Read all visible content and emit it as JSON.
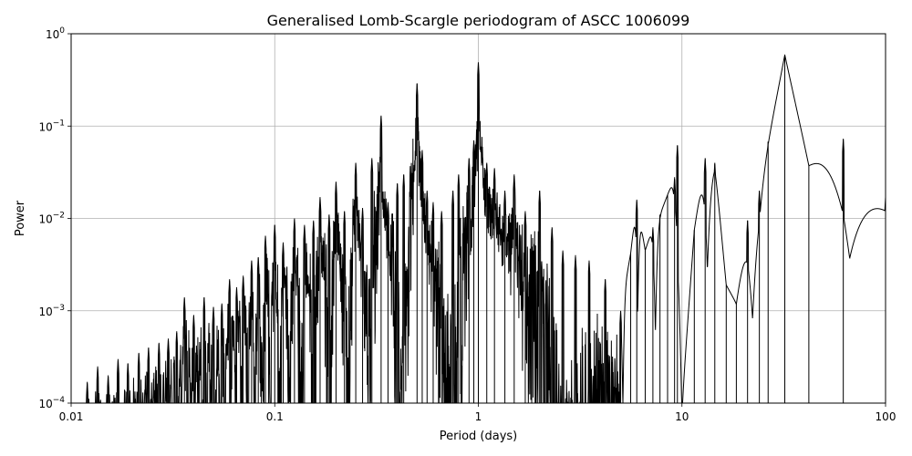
{
  "chart_data": {
    "type": "line",
    "title": "Generalised Lomb-Scargle periodogram of ASCC 1006099",
    "xlabel": "Period (days)",
    "ylabel": "Power",
    "xscale": "log",
    "yscale": "log",
    "xlim": [
      0.01,
      100
    ],
    "ylim": [
      0.0001,
      1
    ],
    "grid": true,
    "x_ticks": [
      {
        "value": 0.01,
        "label": "0.01"
      },
      {
        "value": 0.1,
        "label": "0.1"
      },
      {
        "value": 1,
        "label": "1"
      },
      {
        "value": 10,
        "label": "10"
      },
      {
        "value": 100,
        "label": "100"
      }
    ],
    "y_ticks": [
      {
        "value": 0.0001,
        "base": "10",
        "exp": "−4"
      },
      {
        "value": 0.001,
        "base": "10",
        "exp": "−3"
      },
      {
        "value": 0.01,
        "base": "10",
        "exp": "−2"
      },
      {
        "value": 0.1,
        "base": "10",
        "exp": "−1"
      },
      {
        "value": 1,
        "base": "10",
        "exp": "0"
      }
    ],
    "line_color": "#000000",
    "peaks": [
      {
        "x": 0.012,
        "y": 0.00017
      },
      {
        "x": 0.0135,
        "y": 0.00025
      },
      {
        "x": 0.0152,
        "y": 0.0002
      },
      {
        "x": 0.017,
        "y": 0.0003
      },
      {
        "x": 0.019,
        "y": 0.00027
      },
      {
        "x": 0.0215,
        "y": 0.00035
      },
      {
        "x": 0.024,
        "y": 0.0004
      },
      {
        "x": 0.027,
        "y": 0.00045
      },
      {
        "x": 0.03,
        "y": 0.0005
      },
      {
        "x": 0.033,
        "y": 0.0006
      },
      {
        "x": 0.036,
        "y": 0.0014
      },
      {
        "x": 0.04,
        "y": 0.0009
      },
      {
        "x": 0.045,
        "y": 0.0014
      },
      {
        "x": 0.05,
        "y": 0.0011
      },
      {
        "x": 0.055,
        "y": 0.0012
      },
      {
        "x": 0.06,
        "y": 0.0022
      },
      {
        "x": 0.065,
        "y": 0.0018
      },
      {
        "x": 0.07,
        "y": 0.0024
      },
      {
        "x": 0.077,
        "y": 0.0035
      },
      {
        "x": 0.083,
        "y": 0.0038
      },
      {
        "x": 0.09,
        "y": 0.0065
      },
      {
        "x": 0.1,
        "y": 0.0085
      },
      {
        "x": 0.11,
        "y": 0.0055
      },
      {
        "x": 0.125,
        "y": 0.01
      },
      {
        "x": 0.14,
        "y": 0.0085
      },
      {
        "x": 0.155,
        "y": 0.0095
      },
      {
        "x": 0.167,
        "y": 0.017
      },
      {
        "x": 0.185,
        "y": 0.011
      },
      {
        "x": 0.2,
        "y": 0.025
      },
      {
        "x": 0.22,
        "y": 0.012
      },
      {
        "x": 0.25,
        "y": 0.04
      },
      {
        "x": 0.27,
        "y": 0.013
      },
      {
        "x": 0.3,
        "y": 0.045
      },
      {
        "x": 0.333,
        "y": 0.13
      },
      {
        "x": 0.36,
        "y": 0.015
      },
      {
        "x": 0.4,
        "y": 0.024
      },
      {
        "x": 0.43,
        "y": 0.03
      },
      {
        "x": 0.5,
        "y": 0.29
      },
      {
        "x": 0.53,
        "y": 0.055
      },
      {
        "x": 0.56,
        "y": 0.02
      },
      {
        "x": 0.6,
        "y": 0.015
      },
      {
        "x": 0.66,
        "y": 0.012
      },
      {
        "x": 0.75,
        "y": 0.02
      },
      {
        "x": 0.8,
        "y": 0.03
      },
      {
        "x": 0.9,
        "y": 0.045
      },
      {
        "x": 0.95,
        "y": 0.07
      },
      {
        "x": 1.0,
        "y": 0.49
      },
      {
        "x": 1.1,
        "y": 0.04
      },
      {
        "x": 1.2,
        "y": 0.035
      },
      {
        "x": 1.35,
        "y": 0.02
      },
      {
        "x": 1.5,
        "y": 0.03
      },
      {
        "x": 1.7,
        "y": 0.012
      },
      {
        "x": 2.0,
        "y": 0.02
      },
      {
        "x": 2.3,
        "y": 0.008
      },
      {
        "x": 2.6,
        "y": 0.0045
      },
      {
        "x": 3.0,
        "y": 0.004
      },
      {
        "x": 3.5,
        "y": 0.0035
      },
      {
        "x": 4.2,
        "y": 0.0022
      },
      {
        "x": 5.0,
        "y": 0.001
      },
      {
        "x": 5.6,
        "y": 0.0042
      },
      {
        "x": 6.0,
        "y": 0.016
      },
      {
        "x": 6.6,
        "y": 0.0045
      },
      {
        "x": 7.2,
        "y": 0.008
      },
      {
        "x": 7.8,
        "y": 0.011
      },
      {
        "x": 8.5,
        "y": 0.018
      },
      {
        "x": 9.2,
        "y": 0.028
      },
      {
        "x": 9.5,
        "y": 0.062
      },
      {
        "x": 10.0,
        "y": 0.0001
      },
      {
        "x": 11.5,
        "y": 0.0075
      },
      {
        "x": 13.0,
        "y": 0.045
      },
      {
        "x": 14.5,
        "y": 0.04
      },
      {
        "x": 16.5,
        "y": 0.0019
      },
      {
        "x": 18.5,
        "y": 0.0012
      },
      {
        "x": 21.0,
        "y": 0.0095
      },
      {
        "x": 24.0,
        "y": 0.02
      },
      {
        "x": 26.5,
        "y": 0.068
      },
      {
        "x": 32.0,
        "y": 0.59
      },
      {
        "x": 42.0,
        "y": 0.038
      },
      {
        "x": 62.0,
        "y": 0.073
      },
      {
        "x": 100.0,
        "y": 0.017
      }
    ]
  }
}
